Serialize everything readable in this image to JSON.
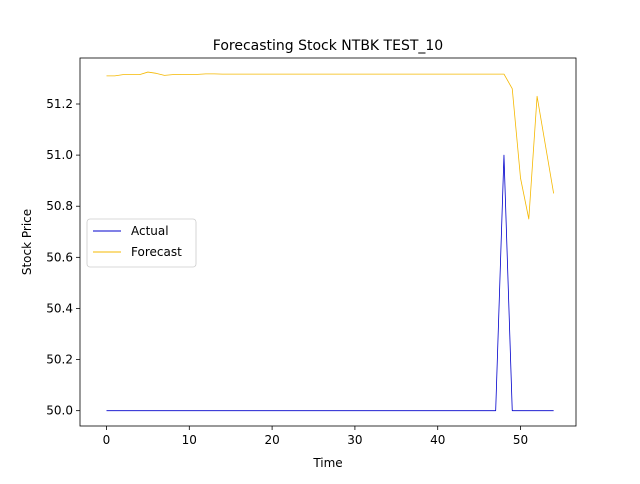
{
  "chart_data": {
    "type": "line",
    "title": "Forecasting Stock NTBK TEST_10",
    "xlabel": "Time",
    "ylabel": "Stock Price",
    "xlim": [
      -3.2,
      56.7
    ],
    "ylim": [
      49.94,
      51.38
    ],
    "xticks": [
      0,
      10,
      20,
      30,
      40,
      50
    ],
    "yticks": [
      50.0,
      50.2,
      50.4,
      50.6,
      50.8,
      51.0,
      51.2
    ],
    "ytick_labels": [
      "50.0",
      "50.2",
      "50.4",
      "50.6",
      "50.8",
      "51.0",
      "51.2"
    ],
    "grid": false,
    "legend": "center-left",
    "series": [
      {
        "name": "Actual",
        "color": "#0000cc",
        "x": [
          0,
          1,
          2,
          3,
          4,
          5,
          6,
          7,
          8,
          9,
          10,
          11,
          12,
          13,
          14,
          15,
          16,
          17,
          18,
          19,
          20,
          21,
          22,
          23,
          24,
          25,
          26,
          27,
          28,
          29,
          30,
          31,
          32,
          33,
          34,
          35,
          36,
          37,
          38,
          39,
          40,
          41,
          42,
          43,
          44,
          45,
          46,
          47,
          48,
          49,
          50,
          51,
          52,
          53,
          54
        ],
        "values": [
          50,
          50,
          50,
          50,
          50,
          50,
          50,
          50,
          50,
          50,
          50,
          50,
          50,
          50,
          50,
          50,
          50,
          50,
          50,
          50,
          50,
          50,
          50,
          50,
          50,
          50,
          50,
          50,
          50,
          50,
          50,
          50,
          50,
          50,
          50,
          50,
          50,
          50,
          50,
          50,
          50,
          50,
          50,
          50,
          50,
          50,
          50,
          50,
          51.0,
          50,
          50,
          50,
          50,
          50,
          50
        ]
      },
      {
        "name": "Forecast",
        "color": "#f5b800",
        "x": [
          0,
          1,
          2,
          3,
          4,
          5,
          6,
          7,
          8,
          9,
          10,
          11,
          12,
          13,
          14,
          15,
          16,
          17,
          18,
          19,
          20,
          21,
          22,
          23,
          24,
          25,
          26,
          27,
          28,
          29,
          30,
          31,
          32,
          33,
          34,
          35,
          36,
          37,
          38,
          39,
          40,
          41,
          42,
          43,
          44,
          45,
          46,
          47,
          48,
          49,
          50,
          51,
          52,
          53,
          54
        ],
        "values": [
          51.31,
          51.31,
          51.315,
          51.315,
          51.315,
          51.325,
          51.32,
          51.312,
          51.315,
          51.316,
          51.316,
          51.316,
          51.318,
          51.318,
          51.317,
          51.317,
          51.317,
          51.317,
          51.317,
          51.317,
          51.317,
          51.317,
          51.317,
          51.317,
          51.317,
          51.317,
          51.317,
          51.317,
          51.317,
          51.317,
          51.317,
          51.317,
          51.317,
          51.317,
          51.317,
          51.317,
          51.317,
          51.317,
          51.317,
          51.317,
          51.317,
          51.317,
          51.317,
          51.317,
          51.317,
          51.317,
          51.317,
          51.317,
          51.317,
          51.26,
          50.91,
          50.75,
          51.23,
          51.04,
          50.85
        ]
      }
    ]
  }
}
